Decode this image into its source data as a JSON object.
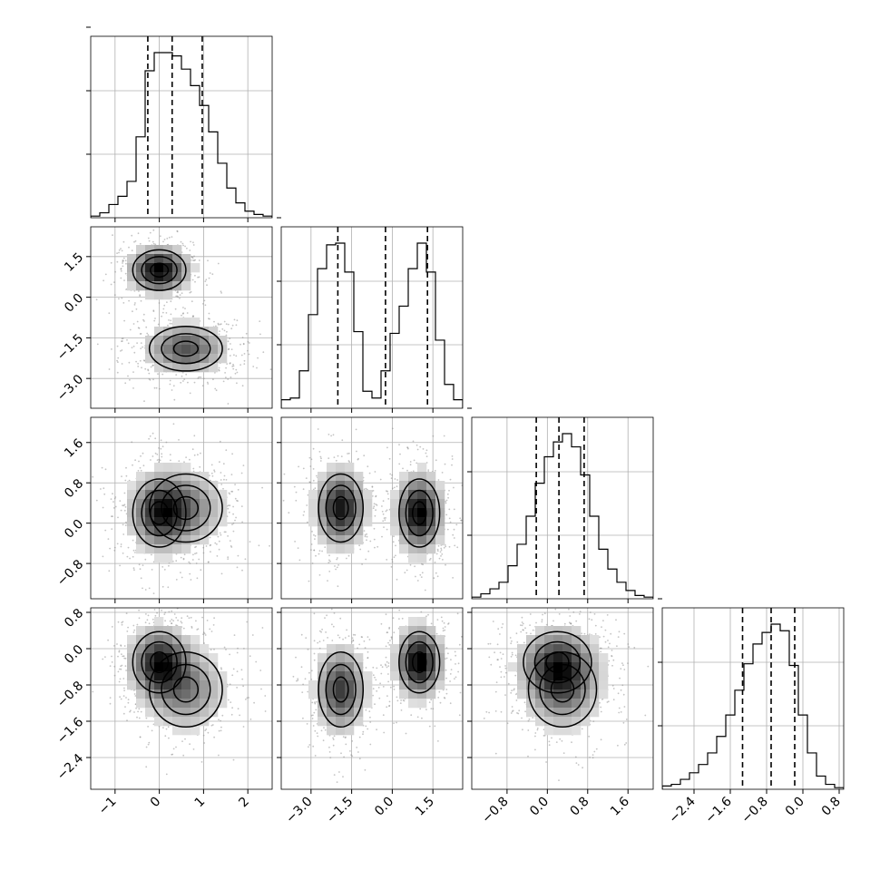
{
  "chart_data": {
    "type": "corner",
    "dims": 4,
    "axes": [
      {
        "ticks": [
          -1,
          0,
          1,
          2
        ],
        "tick_labels": [
          "−1",
          "0",
          "1",
          "2"
        ],
        "range": [
          -1.55,
          2.55
        ],
        "quantiles": [
          -0.26,
          0.29,
          0.97
        ],
        "hist": [
          0.01,
          0.03,
          0.08,
          0.13,
          0.22,
          0.49,
          0.89,
          1.0,
          1.0,
          0.98,
          0.9,
          0.8,
          0.68,
          0.52,
          0.33,
          0.18,
          0.09,
          0.04,
          0.02,
          0.01
        ]
      },
      {
        "ticks": [
          -3.0,
          -1.5,
          0.0,
          1.5
        ],
        "tick_labels": [
          "−3.0",
          "−1.5",
          "0.0",
          "1.5"
        ],
        "range": [
          -4.1,
          2.6
        ],
        "quantiles": [
          -2.01,
          -0.25,
          1.3
        ],
        "hist": [
          0.05,
          0.06,
          0.22,
          0.55,
          0.82,
          0.96,
          0.97,
          0.8,
          0.45,
          0.1,
          0.06,
          0.22,
          0.44,
          0.6,
          0.82,
          0.97,
          0.8,
          0.4,
          0.14,
          0.05
        ]
      },
      {
        "ticks": [
          -0.8,
          0.0,
          0.8,
          1.6
        ],
        "tick_labels": [
          "−0.8",
          "0.0",
          "0.8",
          "1.6"
        ],
        "range": [
          -1.5,
          2.1
        ],
        "quantiles": [
          -0.22,
          0.23,
          0.73
        ],
        "hist": [
          0.01,
          0.03,
          0.06,
          0.1,
          0.2,
          0.33,
          0.5,
          0.7,
          0.86,
          0.95,
          1.0,
          0.92,
          0.75,
          0.5,
          0.3,
          0.18,
          0.1,
          0.05,
          0.02,
          0.01
        ]
      },
      {
        "ticks": [
          -2.4,
          -1.6,
          -0.8,
          0.0,
          0.8
        ],
        "tick_labels": [
          "−2.4",
          "−1.6",
          "−0.8",
          "0.0",
          "0.8"
        ],
        "range": [
          -3.1,
          0.9
        ],
        "quantiles": [
          -1.33,
          -0.7,
          -0.18
        ],
        "hist": [
          0.02,
          0.03,
          0.06,
          0.1,
          0.15,
          0.22,
          0.32,
          0.45,
          0.6,
          0.76,
          0.88,
          0.95,
          1.0,
          0.96,
          0.75,
          0.45,
          0.22,
          0.08,
          0.03,
          0.01
        ]
      }
    ],
    "modes": [
      {
        "w": 0.5,
        "mean": [
          0.0,
          1.0,
          0.2,
          -0.3
        ],
        "sd": [
          0.4,
          0.5,
          0.45,
          0.45
        ]
      },
      {
        "w": 0.5,
        "mean": [
          0.6,
          -1.9,
          0.3,
          -0.9
        ],
        "sd": [
          0.55,
          0.55,
          0.45,
          0.55
        ]
      }
    ],
    "grid": true
  }
}
